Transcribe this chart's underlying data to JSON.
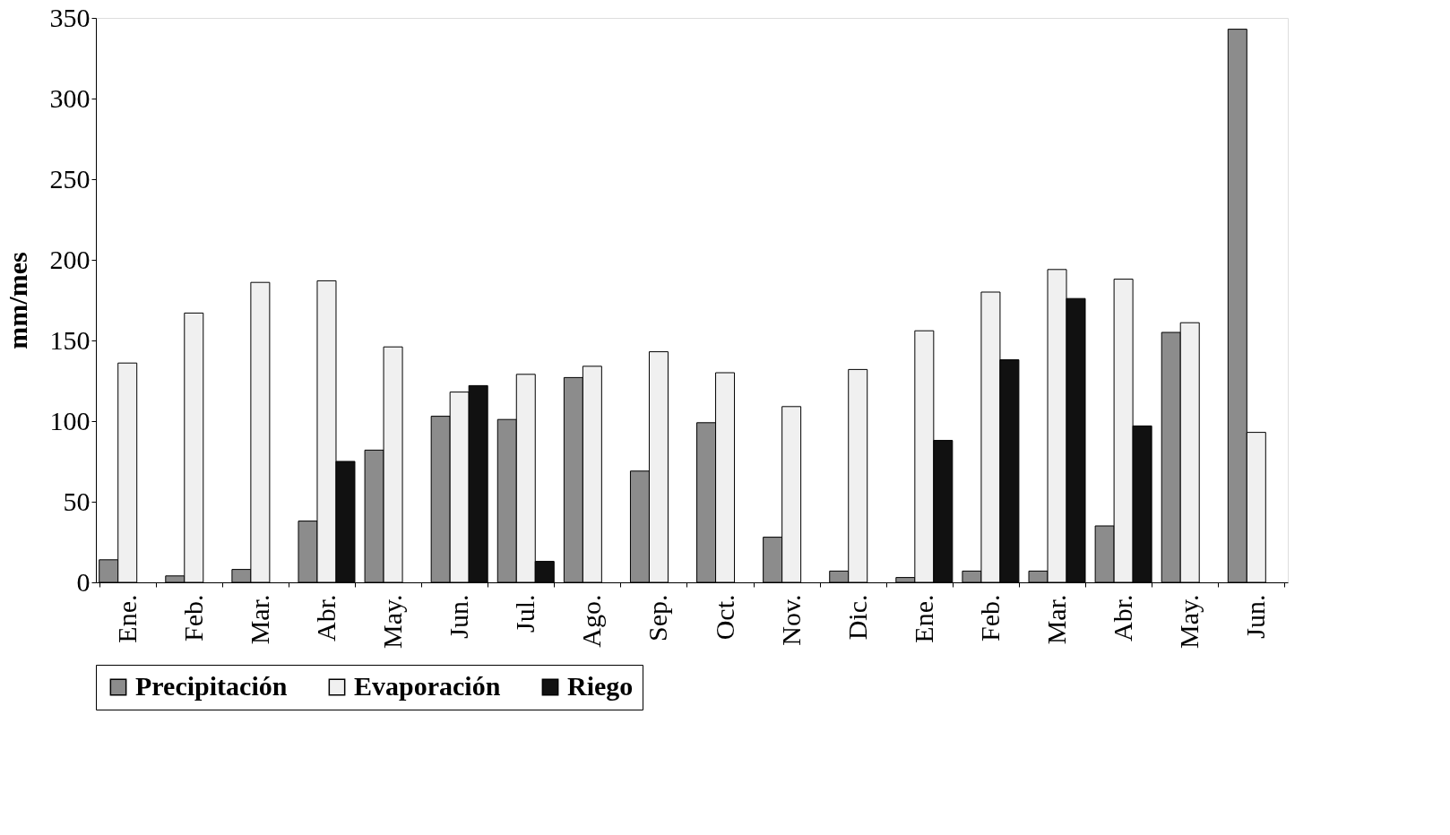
{
  "chart_data": {
    "type": "bar",
    "ylabel": "mm/mes",
    "categories": [
      "Ene.",
      "Feb.",
      "Mar.",
      "Abr.",
      "May.",
      "Jun.",
      "Jul.",
      "Ago.",
      "Sep.",
      "Oct.",
      "Nov.",
      "Dic.",
      "Ene.",
      "Feb.",
      "Mar.",
      "Abr.",
      "May.",
      "Jun."
    ],
    "series": [
      {
        "name": "Precipitación",
        "color": "#8c8c8c",
        "values": [
          14,
          4,
          8,
          38,
          82,
          103,
          101,
          127,
          69,
          99,
          28,
          7,
          3,
          7,
          7,
          35,
          155,
          343
        ]
      },
      {
        "name": "Evaporación",
        "color": "#f0f0f0",
        "values": [
          136,
          167,
          186,
          187,
          146,
          118,
          129,
          134,
          143,
          130,
          109,
          132,
          156,
          180,
          194,
          188,
          161,
          93
        ]
      },
      {
        "name": "Riego",
        "color": "#111111",
        "values": [
          null,
          null,
          null,
          75,
          null,
          122,
          13,
          null,
          null,
          null,
          null,
          null,
          88,
          138,
          176,
          97,
          null,
          null
        ]
      }
    ],
    "ylim": [
      0,
      350
    ],
    "yticks": [
      0,
      50,
      100,
      150,
      200,
      250,
      300,
      350
    ],
    "grid": false,
    "legend": "bottom"
  }
}
